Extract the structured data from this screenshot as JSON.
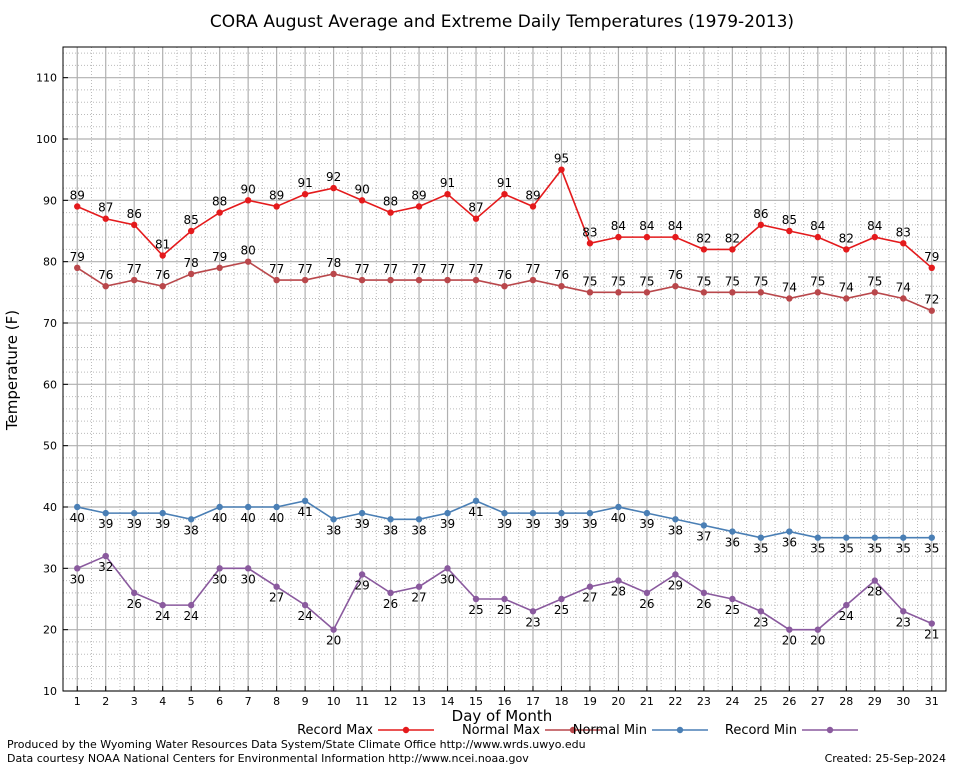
{
  "footer": {
    "credit_line1": "Produced by the Wyoming Water Resources Data System/State Climate Office http://www.wrds.uwyo.edu",
    "credit_line2": "Data courtesy NOAA National Centers for Environmental Information http://www.ncei.noaa.gov",
    "created": "Created:  25-Sep-2024"
  },
  "chart_data": {
    "type": "line",
    "title": "CORA August Average and Extreme Daily Temperatures (1979-2013)",
    "xlabel": "Day of Month",
    "ylabel": "Temperature (F)",
    "ylim": [
      10,
      115
    ],
    "yticks": [
      10,
      20,
      30,
      40,
      50,
      60,
      70,
      80,
      90,
      100,
      110
    ],
    "xlim": [
      0.5,
      31.5
    ],
    "grid": true,
    "legend_position": "bottom",
    "x": [
      1,
      2,
      3,
      4,
      5,
      6,
      7,
      8,
      9,
      10,
      11,
      12,
      13,
      14,
      15,
      16,
      17,
      18,
      19,
      20,
      21,
      22,
      23,
      24,
      25,
      26,
      27,
      28,
      29,
      30,
      31
    ],
    "series": [
      {
        "name": "Record Max",
        "color": "#e41a1c",
        "label_position": "above",
        "values": [
          89,
          87,
          86,
          81,
          85,
          88,
          90,
          89,
          91,
          92,
          90,
          88,
          89,
          91,
          87,
          91,
          89,
          95,
          83,
          84,
          84,
          84,
          82,
          82,
          86,
          85,
          84,
          82,
          84,
          83,
          79
        ]
      },
      {
        "name": "Normal Max",
        "color": "#b9474b",
        "label_position": "above",
        "values": [
          79,
          76,
          77,
          76,
          78,
          79,
          80,
          77,
          77,
          78,
          77,
          77,
          77,
          77,
          77,
          76,
          77,
          76,
          75,
          75,
          75,
          76,
          75,
          75,
          75,
          74,
          75,
          74,
          75,
          74,
          72
        ]
      },
      {
        "name": "Normal Min",
        "color": "#4a7fb5",
        "label_position": "below",
        "values": [
          40,
          39,
          39,
          39,
          38,
          40,
          40,
          40,
          41,
          38,
          39,
          38,
          38,
          39,
          41,
          39,
          39,
          39,
          39,
          40,
          39,
          38,
          37,
          36,
          35,
          36,
          35,
          35,
          35,
          35,
          35
        ]
      },
      {
        "name": "Record Min",
        "color": "#8a5a9e",
        "label_position": "below",
        "values": [
          30,
          32,
          26,
          24,
          24,
          30,
          30,
          27,
          24,
          20,
          29,
          26,
          27,
          30,
          25,
          25,
          23,
          25,
          27,
          28,
          26,
          29,
          26,
          25,
          23,
          20,
          20,
          24,
          28,
          23,
          21
        ]
      }
    ]
  }
}
